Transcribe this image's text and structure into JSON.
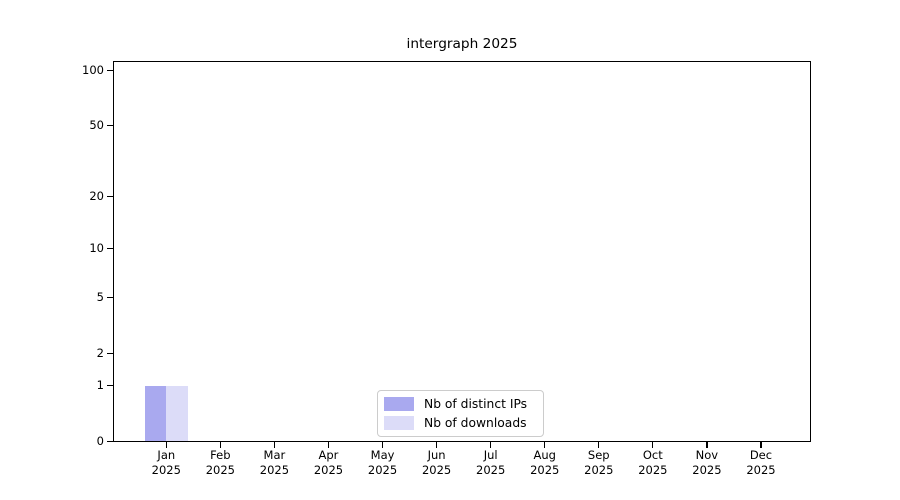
{
  "title": "intergraph 2025",
  "chart_data": {
    "type": "bar",
    "title": "intergraph 2025",
    "categories": [
      "Jan",
      "Feb",
      "Mar",
      "Apr",
      "May",
      "Jun",
      "Jul",
      "Aug",
      "Sep",
      "Oct",
      "Nov",
      "Dec"
    ],
    "category_sublabel": "2025",
    "series": [
      {
        "name": "Nb of distinct IPs",
        "color": "#a9a9ef",
        "values": [
          1,
          0,
          0,
          0,
          0,
          0,
          0,
          0,
          0,
          0,
          0,
          0
        ]
      },
      {
        "name": "Nb of downloads",
        "color": "#dcdcf8",
        "values": [
          1,
          0,
          0,
          0,
          0,
          0,
          0,
          0,
          0,
          0,
          0,
          0
        ]
      }
    ],
    "yscale": "log10(1+x)",
    "ylim": [
      0,
      111
    ],
    "y_tick_values": [
      0,
      1,
      2,
      5,
      10,
      20,
      50,
      100
    ],
    "y_tick_labels": [
      "0",
      "1",
      "2",
      "5",
      "10",
      "20",
      "50",
      "100"
    ],
    "y_major_gridlines": [
      1,
      10,
      100
    ],
    "y_minor_gridlines": [
      2,
      3,
      4,
      5,
      6,
      7,
      8,
      9,
      20,
      30,
      40,
      50,
      60,
      70,
      80,
      90
    ],
    "grid": "horizontal only",
    "legend_position": "lower center",
    "xlabel": "",
    "ylabel": ""
  },
  "legend": {
    "items": [
      {
        "label": "Nb of distinct IPs",
        "color": "#a9a9ef"
      },
      {
        "label": "Nb of downloads",
        "color": "#dcdcf8"
      }
    ]
  },
  "colors": {
    "background": "#ffffff",
    "spine": "#000000",
    "major_grid": "#c9c9c9",
    "minor_grid": "#efefef",
    "text": "#000000",
    "legend_border": "#cccccc"
  }
}
